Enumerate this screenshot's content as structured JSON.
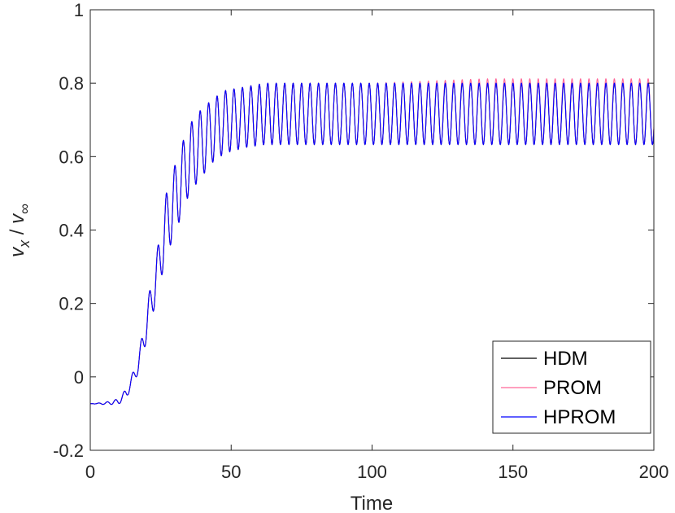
{
  "chart_data": {
    "type": "line",
    "xlabel": "Time",
    "ylabel": {
      "v": "v",
      "x_sub": "x",
      "slash": " / ",
      "inf_sub": "∞"
    },
    "xlim": [
      0,
      200
    ],
    "ylim": [
      -0.2,
      1
    ],
    "xticks": [
      0,
      50,
      100,
      150,
      200
    ],
    "xtick_labels": [
      "0",
      "50",
      "100",
      "150",
      "200"
    ],
    "yticks": [
      -0.2,
      0,
      0.2,
      0.4,
      0.6,
      0.8,
      1
    ],
    "ytick_labels": [
      "-0.2",
      "0",
      "0.2",
      "0.4",
      "0.6",
      "0.8",
      "1"
    ],
    "grid": false,
    "legend": {
      "position": "bottom-right"
    },
    "signal": {
      "start_value": -0.073,
      "period": 3.0,
      "growth_center": 26,
      "growth_rate": 0.16,
      "final_max": 0.8,
      "final_min": 0.633,
      "envelope_points": [
        [
          0,
          -0.073,
          -0.073
        ],
        [
          5,
          -0.07,
          -0.075
        ],
        [
          10,
          -0.06,
          -0.075
        ],
        [
          13,
          -0.03,
          -0.055
        ],
        [
          17,
          0.05,
          0.01
        ],
        [
          20,
          0.19,
          0.1
        ],
        [
          24,
          0.355,
          0.23
        ],
        [
          27,
          0.5,
          0.33
        ],
        [
          31,
          0.6,
          0.41
        ],
        [
          34,
          0.665,
          0.48
        ],
        [
          37,
          0.71,
          0.52
        ],
        [
          41,
          0.74,
          0.56
        ],
        [
          44,
          0.76,
          0.59
        ],
        [
          48,
          0.78,
          0.61
        ],
        [
          55,
          0.79,
          0.625
        ],
        [
          62,
          0.8,
          0.633
        ],
        [
          200,
          0.8,
          0.633
        ]
      ]
    },
    "series": [
      {
        "name": "HDM",
        "color": "#000000",
        "max_offset": 0.0,
        "phase_shift": 0.0
      },
      {
        "name": "PROM",
        "color": "#ff6699",
        "max_offset": 0.012,
        "phase_shift": 0.05
      },
      {
        "name": "HPROM",
        "color": "#0000ff",
        "max_offset": 0.0,
        "phase_shift": 0.0
      }
    ]
  }
}
